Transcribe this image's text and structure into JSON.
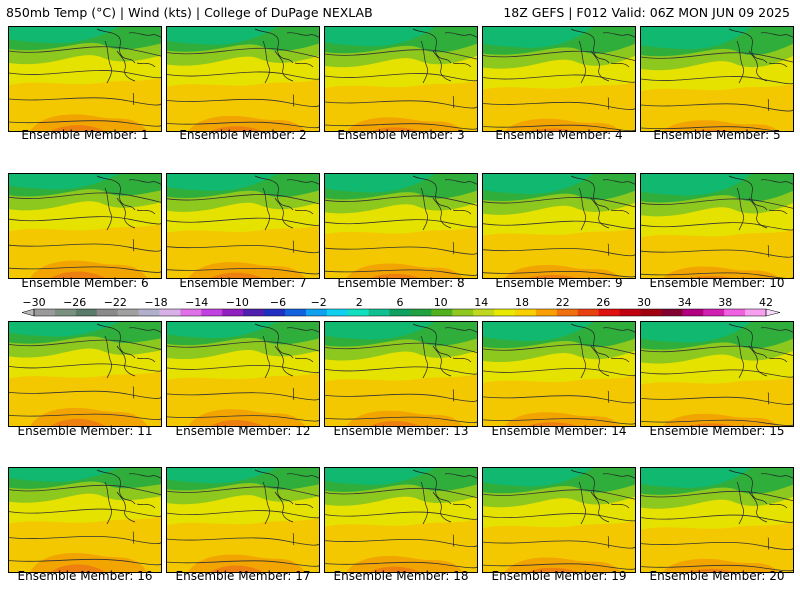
{
  "header": {
    "left": "850mb Temp (°C) | Wind (kts) | College of DuPage NEXLAB",
    "right": "18Z GEFS | F012 Valid: 06Z MON JUN 09 2025"
  },
  "panels": [
    {
      "label": "Ensemble Member: 1"
    },
    {
      "label": "Ensemble Member: 2"
    },
    {
      "label": "Ensemble Member: 3"
    },
    {
      "label": "Ensemble Member: 4"
    },
    {
      "label": "Ensemble Member: 5"
    },
    {
      "label": "Ensemble Member: 6"
    },
    {
      "label": "Ensemble Member: 7"
    },
    {
      "label": "Ensemble Member: 8"
    },
    {
      "label": "Ensemble Member: 9"
    },
    {
      "label": "Ensemble Member: 10"
    },
    {
      "label": "Ensemble Member: 11"
    },
    {
      "label": "Ensemble Member: 12"
    },
    {
      "label": "Ensemble Member: 13"
    },
    {
      "label": "Ensemble Member: 14"
    },
    {
      "label": "Ensemble Member: 15"
    },
    {
      "label": "Ensemble Member: 16"
    },
    {
      "label": "Ensemble Member: 17"
    },
    {
      "label": "Ensemble Member: 18"
    },
    {
      "label": "Ensemble Member: 19"
    },
    {
      "label": "Ensemble Member: 20"
    }
  ],
  "colorbar": {
    "ticks": [
      "−30",
      "−26",
      "−22",
      "−18",
      "−14",
      "−10",
      "−6",
      "−2",
      "2",
      "6",
      "10",
      "14",
      "18",
      "22",
      "26",
      "30",
      "34",
      "38",
      "42"
    ],
    "colors": [
      "#9a9a9a",
      "#7a9080",
      "#5a7a6a",
      "#8a8a8a",
      "#a0a0a0",
      "#b0b0c8",
      "#d8b0e8",
      "#e070e8",
      "#c040e0",
      "#9020c0",
      "#5020b0",
      "#2030c0",
      "#1060e0",
      "#10a0f0",
      "#10d0f0",
      "#10e0c0",
      "#10c090",
      "#10a060",
      "#20a040",
      "#50b020",
      "#90c820",
      "#c0d820",
      "#e8e800",
      "#f8d000",
      "#f8a000",
      "#f07010",
      "#e84010",
      "#e01010",
      "#c00010",
      "#a00010",
      "#800030",
      "#b00080",
      "#d020b0",
      "#f060e0",
      "#f8a0f0"
    ]
  }
}
